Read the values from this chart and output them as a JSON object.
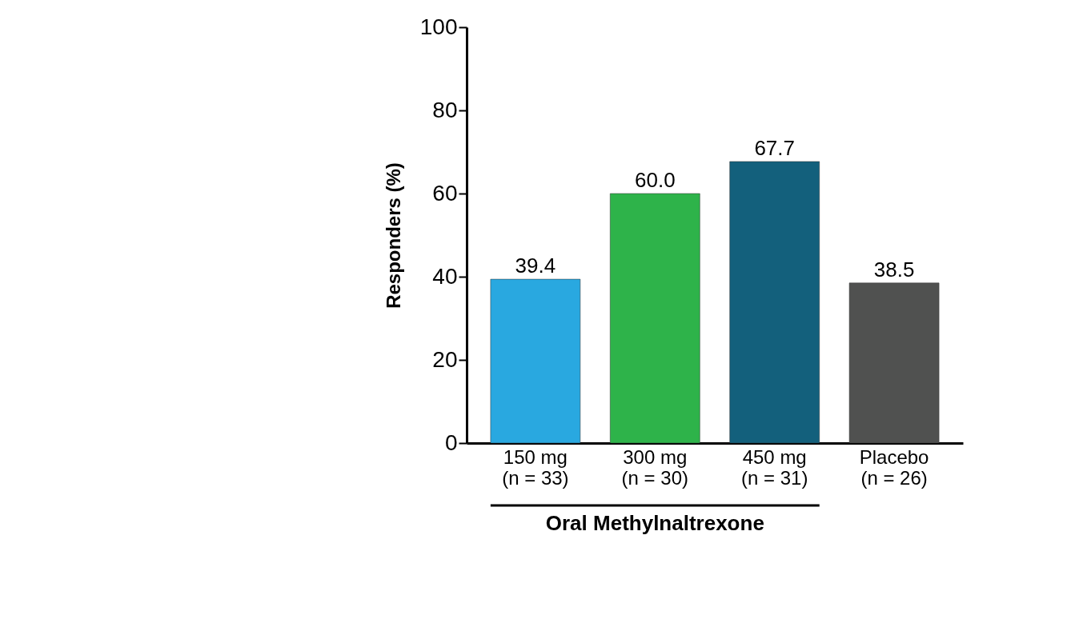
{
  "chart_data": {
    "type": "bar",
    "ylabel": "Responders (%)",
    "categories": [
      "150 mg\n(n = 33)",
      "300 mg\n(n = 30)",
      "450 mg\n(n = 31)",
      "Placebo\n(n = 26)"
    ],
    "values": [
      39.4,
      60.0,
      67.7,
      38.5
    ],
    "colors": [
      "#29a8e0",
      "#2eb34a",
      "#13607c",
      "#505150"
    ],
    "value_labels": [
      "39.4",
      "60.0",
      "67.7",
      "38.5"
    ],
    "ylim": [
      0,
      100
    ],
    "yticks": [
      0,
      20,
      40,
      60,
      80,
      100
    ],
    "grid": false,
    "annotations": [
      "Oral Methylnaltrexone"
    ]
  }
}
